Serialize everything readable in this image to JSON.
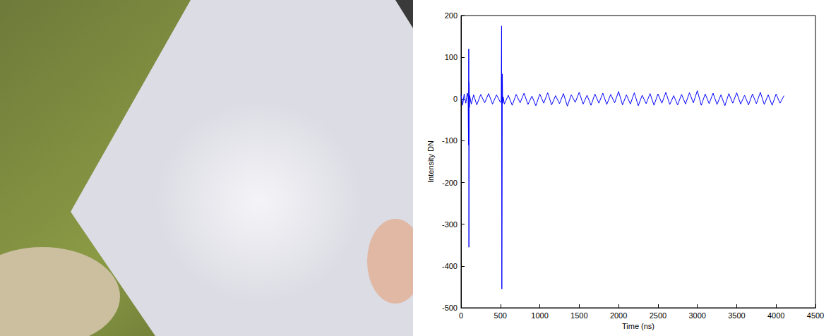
{
  "chart_data": {
    "type": "line",
    "xlabel": "Time (ns)",
    "ylabel": "Intensity DN",
    "color": "#0000ff",
    "grid": false,
    "xlim": [
      0,
      4500
    ],
    "xticks": [
      0,
      500,
      1000,
      1500,
      2000,
      2500,
      3000,
      3500,
      4000,
      4500
    ],
    "ylim": [
      -500,
      200
    ],
    "yticks": [
      -500,
      -400,
      -300,
      -200,
      -100,
      0,
      100,
      200
    ],
    "x": [
      0,
      20,
      40,
      60,
      80,
      90,
      95,
      98,
      100,
      103,
      106,
      110,
      130,
      160,
      200,
      250,
      300,
      350,
      400,
      450,
      500,
      510,
      515,
      518,
      521,
      524,
      528,
      535,
      550,
      600,
      650,
      700,
      750,
      800,
      850,
      900,
      950,
      1000,
      1050,
      1100,
      1150,
      1200,
      1250,
      1300,
      1350,
      1400,
      1450,
      1500,
      1550,
      1600,
      1650,
      1700,
      1750,
      1800,
      1850,
      1900,
      1950,
      2000,
      2050,
      2100,
      2150,
      2200,
      2250,
      2300,
      2350,
      2400,
      2450,
      2500,
      2550,
      2600,
      2650,
      2700,
      2750,
      2800,
      2850,
      2900,
      2950,
      3000,
      3050,
      3100,
      3150,
      3200,
      3250,
      3300,
      3350,
      3400,
      3450,
      3500,
      3550,
      3600,
      3650,
      3700,
      3750,
      3800,
      3850,
      3900,
      3950,
      4000,
      4050,
      4100
    ],
    "values": [
      10,
      -15,
      12,
      -10,
      14,
      5,
      -110,
      120,
      -355,
      40,
      -20,
      8,
      -12,
      10,
      -14,
      11,
      -9,
      13,
      -12,
      10,
      -8,
      -5,
      175,
      -455,
      -240,
      60,
      -10,
      5,
      -12,
      9,
      -15,
      11,
      -9,
      14,
      -13,
      7,
      -16,
      12,
      -10,
      15,
      -14,
      8,
      -11,
      13,
      -17,
      10,
      -8,
      16,
      -12,
      9,
      -15,
      12,
      -10,
      14,
      -13,
      11,
      -9,
      18,
      -14,
      10,
      -12,
      15,
      -16,
      9,
      -11,
      13,
      -15,
      12,
      -10,
      16,
      -13,
      8,
      -14,
      11,
      -12,
      15,
      -9,
      20,
      -15,
      12,
      -11,
      14,
      -13,
      10,
      -16,
      13,
      -10,
      15,
      -12,
      9,
      -14,
      12,
      -11,
      16,
      -13,
      10,
      -15,
      12,
      -10,
      8
    ]
  }
}
